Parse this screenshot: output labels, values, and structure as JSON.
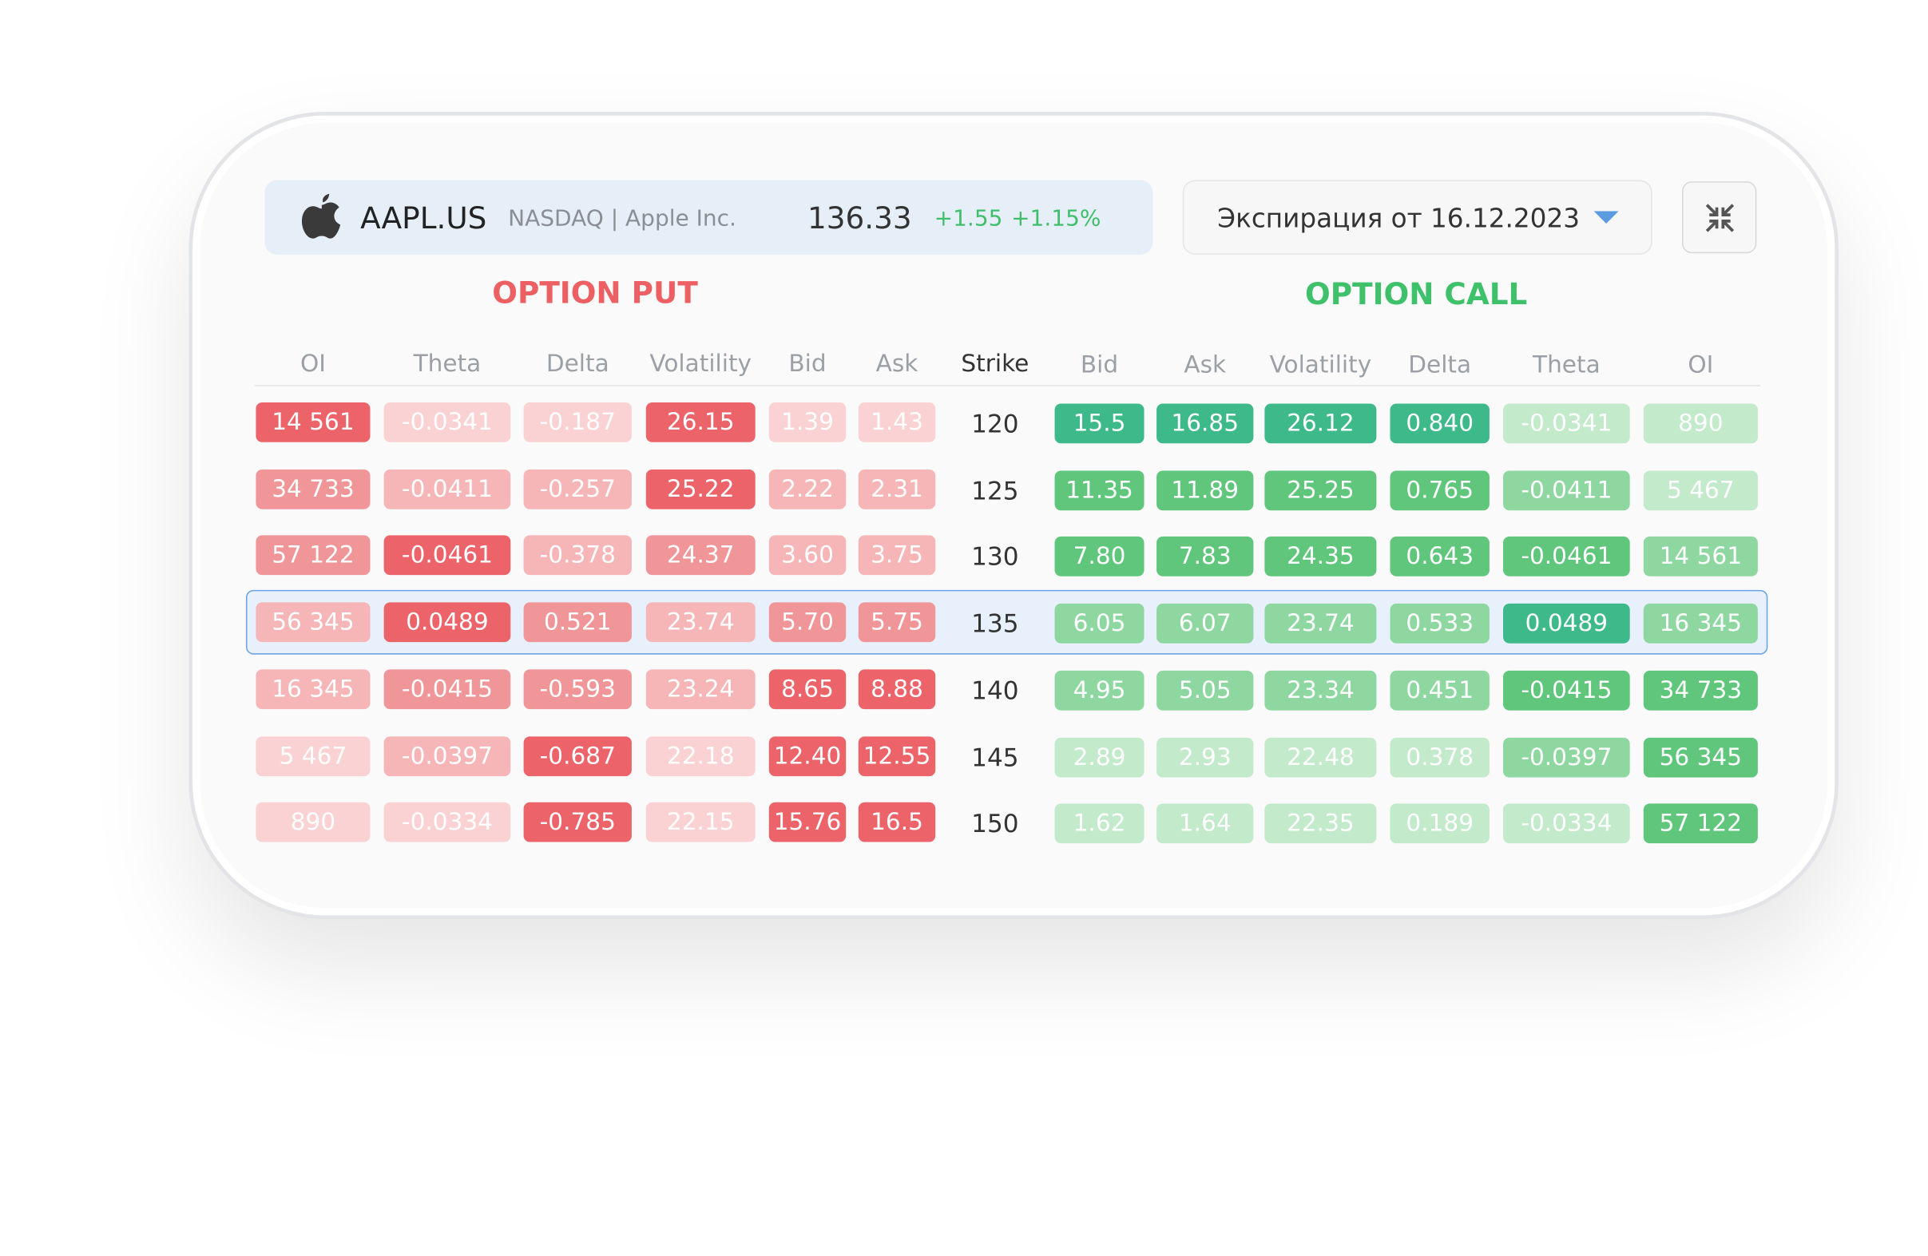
{
  "header": {
    "ticker": "AAPL.US",
    "exchange": "NASDAQ | Apple Inc.",
    "price": "136.33",
    "change": "+1.55",
    "change_pct": "+1.15%",
    "expiration": "Экспирация от 16.12.2023"
  },
  "put_title": "OPTION PUT",
  "call_title": "OPTION CALL",
  "put_columns": [
    "OI",
    "Theta",
    "Delta",
    "Volatility",
    "Bid",
    "Ask"
  ],
  "strike_header": "Strike",
  "call_columns": [
    "Bid",
    "Ask",
    "Volatility",
    "Delta",
    "Theta",
    "OI"
  ],
  "rows": [
    {
      "put": [
        "14 561",
        "-0.0341",
        "-0.187",
        "26.15",
        "1.39",
        "1.43"
      ],
      "strike": "120",
      "call": [
        "15.5",
        "16.85",
        "26.12",
        "0.840",
        "-0.0341",
        "890"
      ]
    },
    {
      "put": [
        "34 733",
        "-0.0411",
        "-0.257",
        "25.22",
        "2.22",
        "2.31"
      ],
      "strike": "125",
      "call": [
        "11.35",
        "11.89",
        "25.25",
        "0.765",
        "-0.0411",
        "5 467"
      ]
    },
    {
      "put": [
        "57 122",
        "-0.0461",
        "-0.378",
        "24.37",
        "3.60",
        "3.75"
      ],
      "strike": "130",
      "call": [
        "7.80",
        "7.83",
        "24.35",
        "0.643",
        "-0.0461",
        "14 561"
      ]
    },
    {
      "put": [
        "56 345",
        "0.0489",
        "0.521",
        "23.74",
        "5.70",
        "5.75"
      ],
      "strike": "135",
      "call": [
        "6.05",
        "6.07",
        "23.74",
        "0.533",
        "0.0489",
        "16 345"
      ]
    },
    {
      "put": [
        "16 345",
        "-0.0415",
        "-0.593",
        "23.24",
        "8.65",
        "8.88"
      ],
      "strike": "140",
      "call": [
        "4.95",
        "5.05",
        "23.34",
        "0.451",
        "-0.0415",
        "34 733"
      ]
    },
    {
      "put": [
        "5 467",
        "-0.0397",
        "-0.687",
        "22.18",
        "12.40",
        "12.55"
      ],
      "strike": "145",
      "call": [
        "2.89",
        "2.93",
        "22.48",
        "0.378",
        "-0.0397",
        "56 345"
      ]
    },
    {
      "put": [
        "890",
        "-0.0334",
        "-0.785",
        "22.15",
        "15.76",
        "16.5"
      ],
      "strike": "150",
      "call": [
        "1.62",
        "1.64",
        "22.35",
        "0.189",
        "-0.0334",
        "57 122"
      ]
    }
  ]
}
